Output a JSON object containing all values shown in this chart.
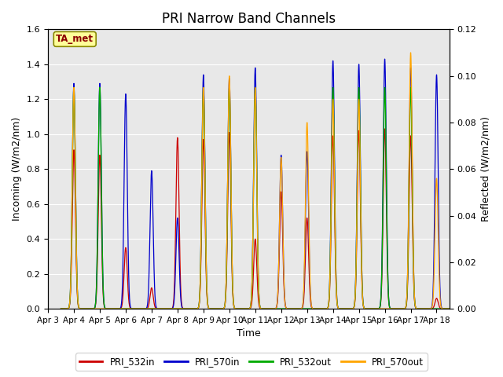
{
  "title": "PRI Narrow Band Channels",
  "xlabel": "Time",
  "ylabel_left": "Incoming (W/m2/nm)",
  "ylabel_right": "Reflected (W/m2/nm)",
  "ylim_left": [
    0.0,
    1.6
  ],
  "ylim_right": [
    0.0,
    0.12
  ],
  "x_tick_labels": [
    "Apr 3",
    "Apr 4",
    "Apr 5",
    "Apr 6",
    "Apr 7",
    "Apr 8",
    "Apr 9",
    "Apr 10",
    "Apr 11",
    "Apr 12",
    "Apr 13",
    "Apr 14",
    "Apr 15",
    "Apr 16",
    "Apr 17",
    "Apr 18"
  ],
  "annotation_text": "TA_met",
  "annotation_color": "#8B0000",
  "annotation_bg": "#FFFF99",
  "bg_color": "#E8E8E8",
  "colors": {
    "PRI_532in": "#CC0000",
    "PRI_570in": "#0000CC",
    "PRI_532out": "#00AA00",
    "PRI_570out": "#FFA500"
  },
  "peak_days": [
    1,
    2,
    3,
    4,
    5,
    6,
    7,
    8,
    9,
    10,
    11,
    12,
    13,
    14,
    15
  ],
  "peak_heights_532in": [
    0.91,
    0.88,
    0.35,
    0.12,
    0.98,
    0.97,
    1.01,
    0.4,
    0.67,
    0.52,
    0.99,
    1.02,
    1.03,
    0.99,
    0.06
  ],
  "peak_heights_570in": [
    1.29,
    1.29,
    1.23,
    0.79,
    0.52,
    1.34,
    1.32,
    1.38,
    0.88,
    0.9,
    1.42,
    1.4,
    1.43,
    1.38,
    1.34
  ],
  "peak_heights_532out": [
    0.095,
    0.095,
    0.0,
    0.0,
    0.0,
    0.095,
    0.095,
    0.095,
    0.0,
    0.0,
    0.095,
    0.095,
    0.095,
    0.095,
    0.0
  ],
  "peak_heights_570out": [
    0.095,
    0.0,
    0.0,
    0.0,
    0.0,
    0.095,
    0.1,
    0.095,
    0.065,
    0.08,
    0.09,
    0.09,
    0.0,
    0.11,
    0.056
  ],
  "spike_sigma": 0.06,
  "n_pts_per_day": 300
}
